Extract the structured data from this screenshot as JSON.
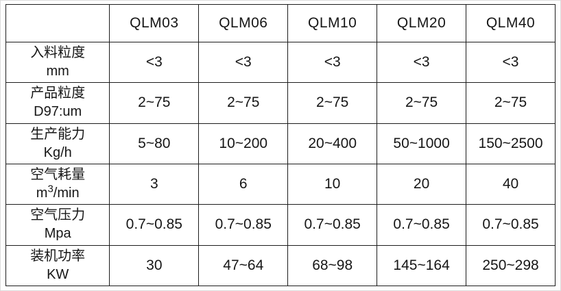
{
  "table": {
    "model_headers": [
      "QLM03",
      "QLM06",
      "QLM10",
      "QLM20",
      "QLM40"
    ],
    "rows": [
      {
        "label_line1": "入料粒度",
        "label_line2": "mm",
        "values": [
          "<3",
          "<3",
          "<3",
          "<3",
          "<3"
        ]
      },
      {
        "label_line1": "产品粒度",
        "label_line2": "D97:um",
        "values": [
          "2~75",
          "2~75",
          "2~75",
          "2~75",
          "2~75"
        ]
      },
      {
        "label_line1": "生产能力",
        "label_line2": "Kg/h",
        "values": [
          "5~80",
          "10~200",
          "20~400",
          "50~1000",
          "150~2500"
        ]
      },
      {
        "label_line1": "空气耗量",
        "label_line2_pre": "m",
        "label_line2_sup": "3",
        "label_line2_post": "/min",
        "values": [
          "3",
          "6",
          "10",
          "20",
          "40"
        ]
      },
      {
        "label_line1": "空气压力",
        "label_line2": "Mpa",
        "values": [
          "0.7~0.85",
          "0.7~0.85",
          "0.7~0.85",
          "0.7~0.85",
          "0.7~0.85"
        ]
      },
      {
        "label_line1": "装机功率",
        "label_line2": "KW",
        "values": [
          "30",
          "47~64",
          "68~98",
          "145~164",
          "250~298"
        ]
      }
    ],
    "colors": {
      "border": "#1c1c1c",
      "text": "#161616",
      "background": "#ffffff"
    }
  }
}
